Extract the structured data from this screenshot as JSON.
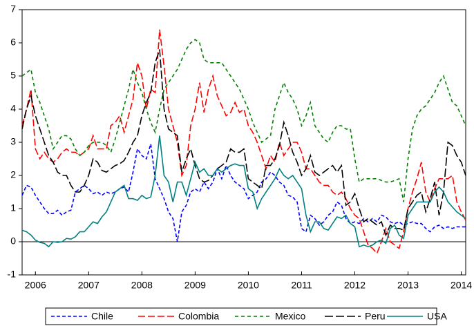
{
  "chart_data": {
    "type": "line",
    "categories": [
      null,
      null,
      null,
      "2006",
      null,
      null,
      null,
      null,
      null,
      null,
      null,
      null,
      null,
      null,
      null,
      "2007",
      null,
      null,
      null,
      null,
      null,
      null,
      null,
      null,
      null,
      null,
      null,
      "2008",
      null,
      null,
      null,
      null,
      null,
      null,
      null,
      null,
      null,
      null,
      null,
      "2009",
      null,
      null,
      null,
      null,
      null,
      null,
      null,
      null,
      null,
      null,
      null,
      "2010",
      null,
      null,
      null,
      null,
      null,
      null,
      null,
      null,
      null,
      null,
      null,
      "2011",
      null,
      null,
      null,
      null,
      null,
      null,
      null,
      null,
      null,
      null,
      null,
      "2012",
      null,
      null,
      null,
      null,
      null,
      null,
      null,
      null,
      null,
      null,
      null,
      "2013",
      null,
      null,
      null,
      null,
      null,
      null,
      null,
      null,
      null,
      null,
      null,
      "2014",
      null
    ],
    "series": [
      {
        "name": "Chile",
        "color": "#0000ff",
        "values": [
          1.4,
          1.7,
          1.65,
          1.4,
          1.2,
          1.0,
          0.85,
          0.85,
          0.95,
          0.8,
          0.9,
          0.95,
          1.5,
          1.6,
          1.7,
          1.6,
          1.45,
          1.5,
          1.4,
          1.5,
          1.45,
          1.5,
          1.6,
          1.65,
          1.5,
          2.1,
          2.8,
          2.6,
          2.5,
          2.95,
          1.9,
          1.6,
          1.3,
          0.9,
          0.7,
          0.0,
          0.9,
          1.1,
          1.5,
          1.6,
          1.5,
          1.8,
          1.6,
          1.8,
          2.2,
          1.9,
          2.3,
          2.0,
          1.8,
          1.7,
          1.6,
          1.3,
          1.4,
          1.5,
          1.8,
          1.9,
          2.1,
          2.0,
          1.8,
          1.7,
          1.4,
          1.35,
          1.2,
          0.4,
          0.3,
          0.8,
          0.7,
          0.5,
          0.6,
          0.8,
          0.9,
          1.2,
          1.1,
          0.7,
          0.55,
          0.6,
          0.55,
          0.7,
          0.6,
          0.7,
          0.6,
          0.8,
          0.75,
          0.6,
          0.55,
          0.6,
          0.5,
          0.55,
          0.6,
          0.55,
          0.55,
          0.4,
          0.3,
          0.45,
          0.5,
          0.4,
          0.45,
          0.4,
          0.45,
          0.45,
          0.45
        ]
      },
      {
        "name": "Colombia",
        "color": "#ff0000",
        "values": [
          3.5,
          4.0,
          4.6,
          2.8,
          2.5,
          2.7,
          2.5,
          2.4,
          2.5,
          2.7,
          2.8,
          2.7,
          2.7,
          2.6,
          2.7,
          2.8,
          3.2,
          2.8,
          2.8,
          2.8,
          3.5,
          3.6,
          3.8,
          3.3,
          3.8,
          4.3,
          5.4,
          5.0,
          4.0,
          4.6,
          4.5,
          6.4,
          5.3,
          4.0,
          3.5,
          3.0,
          2.0,
          2.3,
          3.5,
          4.0,
          4.8,
          3.9,
          4.6,
          5.0,
          4.4,
          4.1,
          3.8,
          3.9,
          4.2,
          3.9,
          4.0,
          3.5,
          3.3,
          3.0,
          2.6,
          2.2,
          2.6,
          2.4,
          3.0,
          2.6,
          2.8,
          3.0,
          3.0,
          2.7,
          2.2,
          2.2,
          2.0,
          1.8,
          1.7,
          1.7,
          1.5,
          1.4,
          1.5,
          1.3,
          1.0,
          0.8,
          0.7,
          0.3,
          -0.1,
          -0.2,
          -0.35,
          0.0,
          0.4,
          0.0,
          -0.1,
          -0.2,
          0.3,
          1.0,
          1.5,
          1.9,
          2.4,
          1.5,
          1.2,
          1.6,
          1.9,
          1.9,
          1.9,
          2.0,
          1.2,
          0.9,
          0.65
        ]
      },
      {
        "name": "Mexico",
        "color": "#008000",
        "values": [
          5.0,
          5.1,
          5.2,
          4.5,
          4.2,
          3.8,
          3.4,
          2.8,
          3.0,
          3.2,
          3.2,
          3.1,
          2.8,
          2.6,
          2.7,
          2.9,
          3.0,
          3.0,
          3.0,
          2.9,
          2.7,
          3.1,
          3.6,
          4.1,
          4.6,
          5.2,
          4.8,
          4.5,
          4.0,
          3.6,
          3.3,
          4.0,
          4.6,
          4.8,
          5.0,
          5.2,
          5.5,
          5.8,
          6.0,
          6.1,
          6.0,
          5.5,
          5.4,
          5.4,
          5.4,
          5.4,
          5.2,
          5.0,
          4.8,
          4.6,
          4.3,
          4.0,
          3.6,
          3.3,
          3.0,
          3.1,
          3.2,
          4.0,
          4.4,
          4.8,
          4.5,
          4.3,
          4.0,
          3.5,
          3.8,
          4.2,
          3.5,
          3.3,
          3.1,
          3.0,
          3.3,
          3.5,
          3.5,
          3.4,
          3.4,
          2.5,
          1.8,
          1.9,
          1.9,
          1.9,
          1.9,
          1.85,
          1.8,
          1.8,
          1.85,
          1.9,
          1.2,
          2.5,
          3.4,
          3.8,
          4.0,
          4.1,
          4.3,
          4.5,
          4.8,
          5.0,
          4.6,
          4.2,
          4.1,
          3.8,
          3.5
        ]
      },
      {
        "name": "Peru",
        "color": "#000000",
        "values": [
          3.4,
          4.0,
          4.4,
          3.8,
          3.4,
          3.0,
          2.6,
          2.4,
          2.1,
          2.0,
          2.0,
          1.7,
          1.5,
          1.5,
          1.7,
          2.0,
          2.5,
          2.4,
          2.15,
          2.1,
          2.2,
          2.3,
          2.35,
          2.45,
          2.7,
          3.0,
          3.2,
          3.8,
          4.2,
          4.5,
          5.4,
          5.8,
          4.0,
          3.4,
          3.3,
          3.2,
          2.1,
          2.5,
          2.8,
          2.3,
          1.9,
          1.8,
          1.85,
          2.0,
          2.2,
          2.3,
          2.4,
          2.8,
          2.7,
          2.7,
          2.8,
          1.9,
          1.8,
          1.7,
          1.6,
          2.3,
          2.3,
          2.5,
          2.9,
          3.6,
          3.2,
          2.7,
          2.4,
          2.0,
          2.2,
          2.6,
          2.1,
          2.0,
          2.1,
          2.2,
          2.3,
          2.1,
          2.3,
          1.1,
          1.2,
          1.45,
          1.0,
          0.6,
          0.7,
          0.6,
          0.5,
          0.6,
          0.2,
          0.5,
          0.4,
          0.4,
          0.35,
          1.0,
          1.2,
          1.4,
          1.5,
          0.9,
          1.3,
          1.8,
          0.8,
          1.5,
          3.0,
          2.9,
          2.6,
          2.4,
          2.0
        ]
      },
      {
        "name": "USA",
        "color": "#008080",
        "values": [
          0.35,
          0.3,
          0.2,
          0.05,
          -0.02,
          -0.05,
          -0.15,
          0.0,
          -0.02,
          0.0,
          0.1,
          0.08,
          0.15,
          0.3,
          0.3,
          0.45,
          0.6,
          0.55,
          0.75,
          0.9,
          1.2,
          1.5,
          1.6,
          1.7,
          1.3,
          1.3,
          1.25,
          1.4,
          1.3,
          1.35,
          2.0,
          3.2,
          2.0,
          1.8,
          1.2,
          1.8,
          1.8,
          1.4,
          1.9,
          2.4,
          2.1,
          2.2,
          2.0,
          2.0,
          2.2,
          2.1,
          2.2,
          2.3,
          2.35,
          2.3,
          2.3,
          1.6,
          1.5,
          1.0,
          1.3,
          1.5,
          1.7,
          1.9,
          2.2,
          2.0,
          1.9,
          2.0,
          1.8,
          1.6,
          0.8,
          0.3,
          0.6,
          0.6,
          0.4,
          0.35,
          0.55,
          0.75,
          0.7,
          0.8,
          0.55,
          0.45,
          -0.15,
          -0.1,
          -0.15,
          -0.1,
          0.0,
          0.05,
          -0.05,
          0.4,
          0.5,
          0.2,
          0.1,
          0.8,
          1.0,
          1.2,
          1.2,
          1.2,
          1.2,
          1.5,
          1.65,
          1.5,
          1.2,
          1.05,
          0.9,
          0.8,
          0.7
        ]
      }
    ],
    "ylim": [
      -1,
      7
    ],
    "yticks": [
      -1,
      0,
      1,
      2,
      3,
      4,
      5,
      6,
      7
    ],
    "zero_line": true,
    "legend": "bottom"
  }
}
